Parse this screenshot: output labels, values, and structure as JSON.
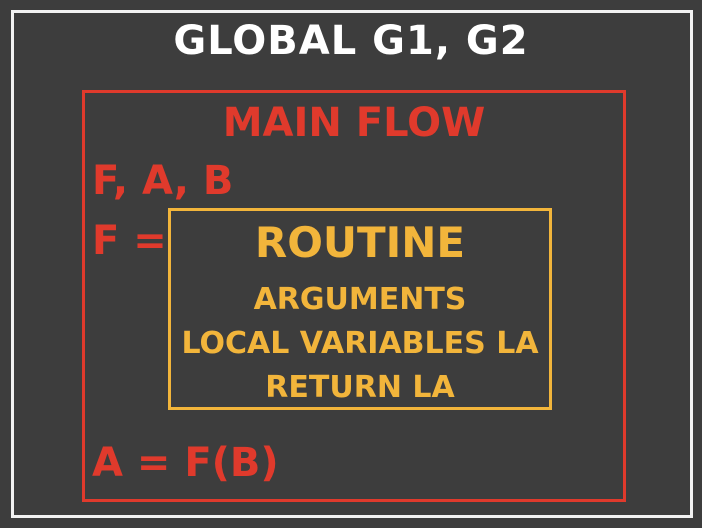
{
  "global": {
    "title": "GLOBAL G1, G2"
  },
  "main_flow": {
    "title": "MAIN FLOW",
    "lines": [
      "F, A, B",
      "F =",
      "A = F(B)"
    ]
  },
  "routine": {
    "title": "ROUTINE",
    "lines": [
      "ARGUMENTS",
      "LOCAL VARIABLES LA",
      "RETURN LA"
    ]
  },
  "colors": {
    "background": "#3d3d3d",
    "global": "#ffffff",
    "main_flow": "#e03a2c",
    "routine": "#f2b53b"
  }
}
